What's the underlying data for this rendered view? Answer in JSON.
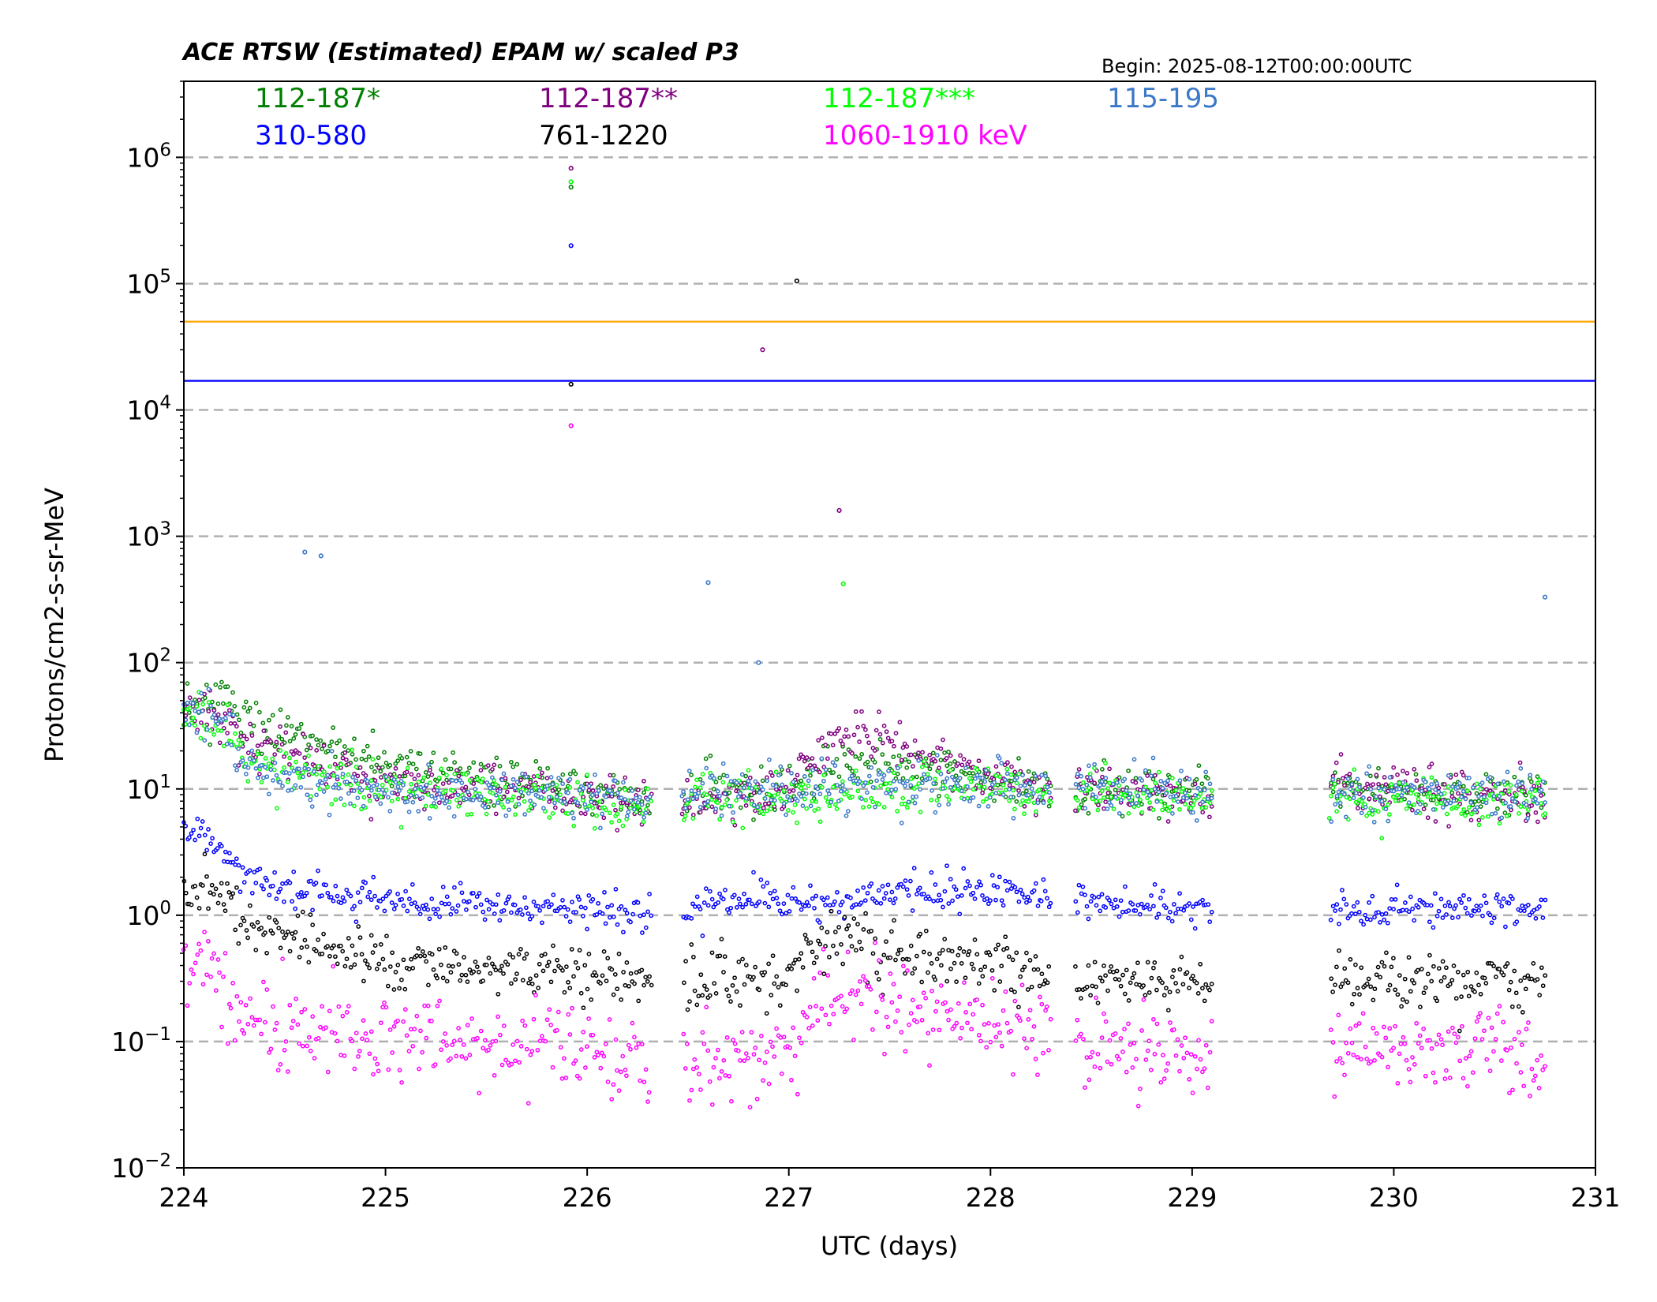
{
  "chart_data": {
    "type": "scatter",
    "title": "ACE RTSW (Estimated) EPAM w/ scaled P3",
    "begin_label": "Begin: 2025-08-12T00:00:00UTC",
    "xlabel": "UTC (days)",
    "ylabel": "Protons/cm2-s-sr-MeV",
    "xlim": [
      224,
      231
    ],
    "ylim": [
      0.01,
      4000000
    ],
    "yscale": "log",
    "x_ticks": [
      "224",
      "225",
      "226",
      "227",
      "228",
      "229",
      "230",
      "231"
    ],
    "y_ticks": [
      {
        "base": "10",
        "exp": "−2",
        "value": 0.01
      },
      {
        "base": "10",
        "exp": "−1",
        "value": 0.1
      },
      {
        "base": "10",
        "exp": "0",
        "value": 1
      },
      {
        "base": "10",
        "exp": "1",
        "value": 10
      },
      {
        "base": "10",
        "exp": "2",
        "value": 100
      },
      {
        "base": "10",
        "exp": "3",
        "value": 1000
      },
      {
        "base": "10",
        "exp": "4",
        "value": 10000
      },
      {
        "base": "10",
        "exp": "5",
        "value": 100000
      },
      {
        "base": "10",
        "exp": "6",
        "value": 1000000
      }
    ],
    "grid": "horizontal dashed at decades",
    "threshold_lines": [
      {
        "value": 50000,
        "color": "#ffa500"
      },
      {
        "value": 17000,
        "color": "#0000ff"
      }
    ],
    "data_gaps": [
      [
        226.32,
        226.47
      ],
      [
        228.3,
        228.42
      ],
      [
        229.1,
        229.68
      ]
    ],
    "series": [
      {
        "name": "112-187*",
        "color": "#008000",
        "points": [
          [
            224.0,
            38
          ],
          [
            224.1,
            45
          ],
          [
            224.2,
            55
          ],
          [
            224.3,
            35
          ],
          [
            224.5,
            25
          ],
          [
            224.7,
            20
          ],
          [
            225.0,
            15
          ],
          [
            225.5,
            12
          ],
          [
            226.0,
            10
          ],
          [
            226.3,
            9
          ],
          [
            226.5,
            9
          ],
          [
            227.0,
            10
          ],
          [
            227.3,
            15
          ],
          [
            227.6,
            14
          ],
          [
            228.0,
            12
          ],
          [
            228.25,
            11
          ],
          [
            228.5,
            10
          ],
          [
            229.0,
            10
          ],
          [
            229.7,
            10
          ],
          [
            230.0,
            10
          ],
          [
            230.5,
            9
          ],
          [
            230.75,
            9
          ]
        ],
        "spikes": [
          [
            225.92,
            580000
          ]
        ]
      },
      {
        "name": "112-187**",
        "color": "#800080",
        "points": [
          [
            224.0,
            40
          ],
          [
            224.1,
            44
          ],
          [
            224.3,
            25
          ],
          [
            224.5,
            18
          ],
          [
            224.7,
            15
          ],
          [
            225.0,
            11
          ],
          [
            225.5,
            10
          ],
          [
            226.0,
            9
          ],
          [
            226.3,
            8
          ],
          [
            226.5,
            8
          ],
          [
            227.0,
            10
          ],
          [
            227.2,
            25
          ],
          [
            227.4,
            28
          ],
          [
            227.7,
            18
          ],
          [
            228.0,
            13
          ],
          [
            228.25,
            11
          ],
          [
            228.5,
            10
          ],
          [
            229.0,
            9
          ],
          [
            229.7,
            10
          ],
          [
            230.0,
            10
          ],
          [
            230.5,
            9
          ],
          [
            230.75,
            9
          ]
        ],
        "spikes": [
          [
            225.92,
            820000
          ],
          [
            226.87,
            30000
          ],
          [
            227.25,
            1600
          ]
        ]
      },
      {
        "name": "112-187***",
        "color": "#00ff00",
        "points": [
          [
            224.0,
            35
          ],
          [
            224.1,
            42
          ],
          [
            224.3,
            18
          ],
          [
            224.5,
            14
          ],
          [
            224.7,
            12
          ],
          [
            225.0,
            10
          ],
          [
            225.5,
            9
          ],
          [
            226.0,
            8
          ],
          [
            226.3,
            7
          ],
          [
            226.5,
            8
          ],
          [
            227.0,
            8
          ],
          [
            227.3,
            9
          ],
          [
            227.6,
            10
          ],
          [
            228.0,
            10
          ],
          [
            228.25,
            9
          ],
          [
            228.5,
            9
          ],
          [
            229.0,
            8
          ],
          [
            229.7,
            8
          ],
          [
            230.0,
            8
          ],
          [
            230.5,
            8
          ],
          [
            230.75,
            8
          ]
        ],
        "spikes": [
          [
            225.92,
            640000
          ],
          [
            227.27,
            420
          ]
        ]
      },
      {
        "name": "115-195",
        "color": "#3b78c9",
        "points": [
          [
            224.0,
            45
          ],
          [
            224.1,
            46
          ],
          [
            224.2,
            40
          ],
          [
            224.3,
            15
          ],
          [
            224.5,
            12
          ],
          [
            224.7,
            11
          ],
          [
            225.0,
            10
          ],
          [
            225.5,
            9
          ],
          [
            226.0,
            9
          ],
          [
            226.3,
            8
          ],
          [
            226.5,
            9
          ],
          [
            227.0,
            10
          ],
          [
            227.3,
            10
          ],
          [
            227.6,
            11
          ],
          [
            228.0,
            11
          ],
          [
            228.25,
            10
          ],
          [
            228.5,
            10
          ],
          [
            229.0,
            9
          ],
          [
            229.7,
            9
          ],
          [
            230.0,
            9
          ],
          [
            230.5,
            9
          ],
          [
            230.75,
            9
          ]
        ],
        "spikes": [
          [
            224.6,
            750
          ],
          [
            224.68,
            700
          ],
          [
            226.6,
            430
          ],
          [
            226.85,
            100
          ],
          [
            230.75,
            330
          ]
        ]
      },
      {
        "name": "310-580",
        "color": "#0000ff",
        "points": [
          [
            224.0,
            4.5
          ],
          [
            224.1,
            4.8
          ],
          [
            224.2,
            3.5
          ],
          [
            224.3,
            2.0
          ],
          [
            224.5,
            1.7
          ],
          [
            224.7,
            1.5
          ],
          [
            225.0,
            1.3
          ],
          [
            225.5,
            1.2
          ],
          [
            226.0,
            1.1
          ],
          [
            226.3,
            1.0
          ],
          [
            226.5,
            1.1
          ],
          [
            226.7,
            1.3
          ],
          [
            227.0,
            1.2
          ],
          [
            227.3,
            1.4
          ],
          [
            227.6,
            1.6
          ],
          [
            228.0,
            1.5
          ],
          [
            228.25,
            1.4
          ],
          [
            228.5,
            1.3
          ],
          [
            229.0,
            1.2
          ],
          [
            229.7,
            1.1
          ],
          [
            230.0,
            1.1
          ],
          [
            230.5,
            1.2
          ],
          [
            230.75,
            1.1
          ]
        ],
        "spikes": [
          [
            225.92,
            200000
          ]
        ]
      },
      {
        "name": "761-1220",
        "color": "#000000",
        "points": [
          [
            224.0,
            1.4
          ],
          [
            224.1,
            1.5
          ],
          [
            224.2,
            1.4
          ],
          [
            224.3,
            0.8
          ],
          [
            224.5,
            0.7
          ],
          [
            224.7,
            0.55
          ],
          [
            225.0,
            0.45
          ],
          [
            225.5,
            0.4
          ],
          [
            226.0,
            0.35
          ],
          [
            226.3,
            0.3
          ],
          [
            226.5,
            0.3
          ],
          [
            227.0,
            0.3
          ],
          [
            227.1,
            0.55
          ],
          [
            227.3,
            0.65
          ],
          [
            227.6,
            0.45
          ],
          [
            228.0,
            0.4
          ],
          [
            228.25,
            0.35
          ],
          [
            228.5,
            0.3
          ],
          [
            229.0,
            0.3
          ],
          [
            229.7,
            0.3
          ],
          [
            230.0,
            0.3
          ],
          [
            230.5,
            0.3
          ],
          [
            230.75,
            0.3
          ]
        ],
        "spikes": [
          [
            225.92,
            16000
          ],
          [
            227.04,
            105000
          ]
        ]
      },
      {
        "name": "1060-1910 keV",
        "color": "#ff00ff",
        "points": [
          [
            224.0,
            0.35
          ],
          [
            224.1,
            0.38
          ],
          [
            224.2,
            0.3
          ],
          [
            224.3,
            0.15
          ],
          [
            224.5,
            0.13
          ],
          [
            224.7,
            0.12
          ],
          [
            225.0,
            0.11
          ],
          [
            225.5,
            0.1
          ],
          [
            226.0,
            0.08
          ],
          [
            226.3,
            0.07
          ],
          [
            226.5,
            0.06
          ],
          [
            227.0,
            0.08
          ],
          [
            227.1,
            0.15
          ],
          [
            227.3,
            0.25
          ],
          [
            227.6,
            0.18
          ],
          [
            228.0,
            0.15
          ],
          [
            228.25,
            0.12
          ],
          [
            228.5,
            0.1
          ],
          [
            229.0,
            0.08
          ],
          [
            229.7,
            0.09
          ],
          [
            230.0,
            0.09
          ],
          [
            230.5,
            0.08
          ],
          [
            230.75,
            0.07
          ]
        ],
        "spikes": [
          [
            225.92,
            7500
          ]
        ]
      }
    ]
  }
}
